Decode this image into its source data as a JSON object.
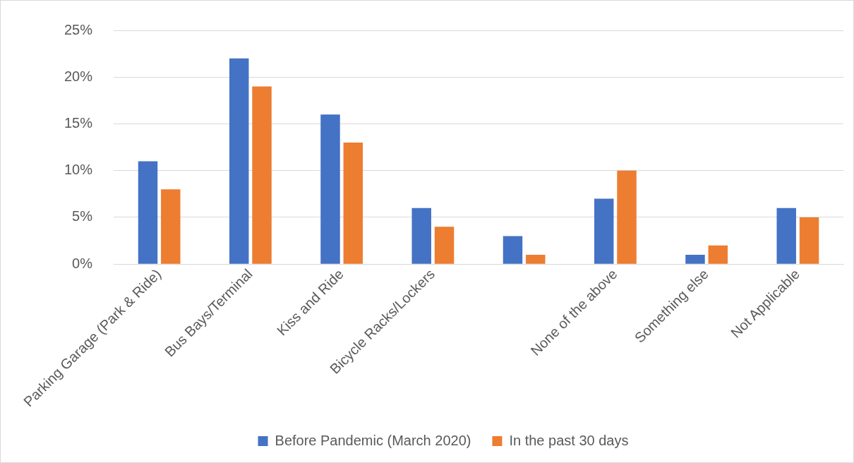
{
  "chart_data": {
    "type": "bar",
    "categories": [
      "Parking Garage (Park & Ride)",
      "Bus Bays/Terminal",
      "Kiss and Ride",
      "Bicycle Racks/Lockers",
      null,
      "None of the above",
      "Something else",
      "Not Applicable"
    ],
    "series": [
      {
        "name": "Before Pandemic (March 2020)",
        "color": "#4472c4",
        "values": [
          11,
          22,
          16,
          6,
          3,
          7,
          1,
          6
        ]
      },
      {
        "name": "In the past 30 days",
        "color": "#ed7d31",
        "values": [
          8,
          19,
          13,
          4,
          1,
          10,
          2,
          5
        ]
      }
    ],
    "ylim": [
      0,
      25
    ],
    "yticks": [
      {
        "value": 0,
        "label": "0%"
      },
      {
        "value": 5,
        "label": "5%"
      },
      {
        "value": 10,
        "label": "10%"
      },
      {
        "value": 15,
        "label": "15%"
      },
      {
        "value": 20,
        "label": "20%"
      },
      {
        "value": 25,
        "label": "25%"
      }
    ],
    "grid": "y",
    "legend": "bottom"
  }
}
